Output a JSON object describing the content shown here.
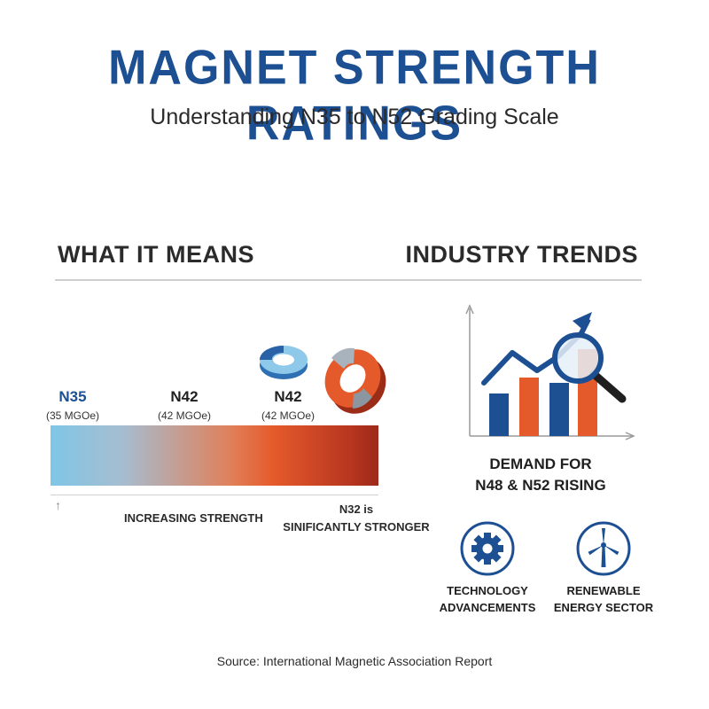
{
  "header": {
    "title": "MAGNET STRENGTH RATINGS",
    "subtitle": "Understanding N35 to N52 Grading Scale"
  },
  "left_section": {
    "heading": "WHAT IT MEANS",
    "grades": [
      {
        "label": "N35",
        "value": "(35 MGOe)",
        "color": "#1d4f93"
      },
      {
        "label": "N42",
        "value": "(42 MGOe)",
        "color": "#1f1f1f"
      },
      {
        "label": "N42",
        "value": "(42 MGOe)",
        "color": "#1f1f1f"
      }
    ],
    "scale_colors": [
      "#7fc6e6",
      "#e55a2b",
      "#9d2a1a"
    ],
    "arrow_glyph": "↑",
    "increasing_label": "INCREASING STRENGTH",
    "stronger_line1": "N32 is",
    "stronger_line2": "SINIFICANTLY STRONGER",
    "magnet_icons": [
      "small-ring-magnet-icon",
      "large-horseshoe-magnet-icon"
    ]
  },
  "right_section": {
    "heading": "INDUSTRY TRENDS",
    "chart_icon": "rising-bar-chart-with-magnifier-icon",
    "demand_line1": "DEMAND FOR",
    "demand_line2": "N48 & N52 RISING",
    "sectors": [
      {
        "icon": "gear-icon",
        "line1": "TECHNOLOGY",
        "line2": "ADVANCEMENTS"
      },
      {
        "icon": "wind-turbine-icon",
        "line1": "RENEWABLE",
        "line2": "ENERGY SECTOR"
      }
    ],
    "accent_blue": "#1d4f93",
    "accent_orange": "#e55a2b"
  },
  "footer": {
    "source": "Source: International Magnetic Association Report"
  }
}
